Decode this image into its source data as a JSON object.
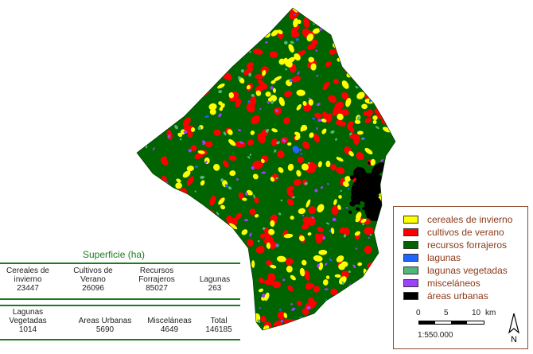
{
  "map": {
    "colors": {
      "cereales": "#ffff00",
      "cultivos": "#ff0000",
      "forrajeros": "#006400",
      "lagunas": "#1e64ff",
      "vegetadas": "#4fb87a",
      "miscelaneos": "#a040ff",
      "urbanas": "#000000"
    }
  },
  "legend": {
    "items": [
      {
        "label": "cereales de invierno",
        "color": "#ffff00"
      },
      {
        "label": "cultivos de verano",
        "color": "#ff0000"
      },
      {
        "label": "recursos forrajeros",
        "color": "#006400"
      },
      {
        "label": "lagunas",
        "color": "#1e64ff"
      },
      {
        "label": "lagunas vegetadas",
        "color": "#4fb87a"
      },
      {
        "label": "misceláneos",
        "color": "#a040ff"
      },
      {
        "label": "áreas urbanas",
        "color": "#000000"
      }
    ]
  },
  "scale": {
    "ticks": [
      "0",
      "5",
      "10"
    ],
    "unit": "km",
    "ratio": "1:550.000"
  },
  "north_label": "N",
  "surface": {
    "title": "Superficie (ha)",
    "row1": [
      {
        "label_1": "Cereales de",
        "label_2": "invierno",
        "value": "23447"
      },
      {
        "label_1": "Cultivos de",
        "label_2": "Verano",
        "value": "26096"
      },
      {
        "label_1": "Recursos",
        "label_2": "Forrajeros",
        "value": "85027"
      },
      {
        "label_1": "",
        "label_2": "Lagunas",
        "value": "263"
      }
    ],
    "row2": [
      {
        "label_1": "Lagunas",
        "label_2": "Vegetadas",
        "value": "1014"
      },
      {
        "label_1": "",
        "label_2": "Areas Urbanas",
        "value": "5690"
      },
      {
        "label_1": "",
        "label_2": "Misceláneas",
        "value": "4649"
      },
      {
        "label_1": "",
        "label_2": "Total",
        "value": "146185"
      }
    ]
  }
}
